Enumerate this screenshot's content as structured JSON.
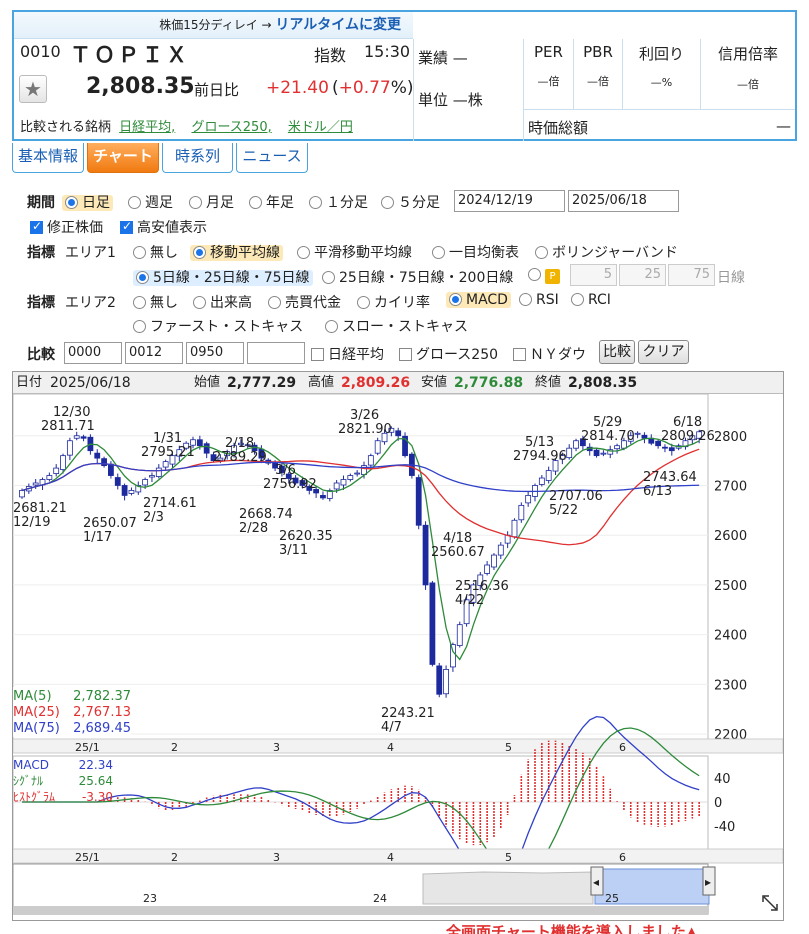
{
  "header": {
    "delay_note": "株価15分ディレイ →",
    "realtime_link": "リアルタイムに変更",
    "code": "0010",
    "name": "ＴＯＰＩＸ",
    "index_label": "指数",
    "time": "15:30",
    "price": "2,808.35",
    "change_label": "前日比",
    "change": "+21.40",
    "change_pct_open": "(",
    "change_pct": "+0.77",
    "change_pct_close": "%)",
    "compare_label": "比較される銘柄",
    "compare_links": [
      "日経平均,",
      "グロース250,",
      "米ドル／円"
    ],
    "gyoseki_label": "業績",
    "gyoseki_value": "—",
    "unit_label": "単位",
    "unit_value": "—株",
    "per_label": "PER",
    "per_value": "—倍",
    "pbr_label": "PBR",
    "pbr_value": "—倍",
    "yield_label": "利回り",
    "yield_value": "—%",
    "margin_label": "信用倍率",
    "margin_value": "—倍",
    "mcap_label": "時価総額",
    "mcap_value": "—"
  },
  "tabs": [
    "基本情報",
    "チャート",
    "時系列",
    "ニュース"
  ],
  "controls": {
    "period_label": "期間",
    "periods": [
      "日足",
      "週足",
      "月足",
      "年足",
      "１分足",
      "５分足"
    ],
    "date_from": "2024/12/19",
    "date_to": "2025/06/18",
    "adjusted": "修正株価",
    "hilo": "高安値表示",
    "ind_label": "指標",
    "area1": "エリア1",
    "area2": "エリア2",
    "area1_opts": [
      "無し",
      "移動平均線",
      "平滑移動平均線",
      "一目均衡表",
      "ボリンジャーバンド"
    ],
    "ma_opts": [
      "5日線・25日線・75日線",
      "25日線・75日線・200日線"
    ],
    "custom_ma": [
      "5",
      "25",
      "75"
    ],
    "days": "日線",
    "area2_opts": [
      "無し",
      "出来高",
      "売買代金",
      "カイリ率",
      "MACD",
      "RSI",
      "RCI",
      "ファースト・ストキャス",
      "スロー・ストキャス"
    ],
    "compare_label": "比較",
    "compare_codes": [
      "0000",
      "0012",
      "0950",
      ""
    ],
    "compare_checks": [
      "日経平均",
      "グロース250",
      "ＮＹダウ"
    ],
    "btn_compare": "比較",
    "btn_clear": "クリア"
  },
  "ohlc": {
    "date_label": "日付",
    "date": "2025/06/18",
    "open_label": "始値",
    "open": "2,777.29",
    "high_label": "高値",
    "high": "2,809.26",
    "low_label": "安値",
    "low": "2,776.88",
    "close_label": "終値",
    "close": "2,808.35"
  },
  "colors": {
    "up": "#ffffff",
    "down": "#1c2a9e",
    "ma5": "#2e8b3a",
    "ma25": "#e03030",
    "ma75": "#3040c8"
  },
  "chart_data": {
    "type": "candlestick",
    "y_ticks": [
      "2800",
      "2700",
      "2600",
      "2500",
      "2400",
      "2300",
      "2200"
    ],
    "ylim": [
      2190,
      2880
    ],
    "x_ticks": [
      "25/1",
      "2",
      "3",
      "4",
      "5",
      "6"
    ],
    "ma_legend": [
      {
        "name": "MA(5)",
        "value": "2,782.37"
      },
      {
        "name": "MA(25)",
        "value": "2,767.13"
      },
      {
        "name": "MA(75)",
        "value": "2,689.45"
      }
    ],
    "annotations": [
      {
        "text": "12/30",
        "sub": "2811.71"
      },
      {
        "text": "1/31",
        "sub": "2795.21"
      },
      {
        "text": "2/18",
        "sub": "2789.29"
      },
      {
        "text": "3/6",
        "sub": "2756.92"
      },
      {
        "text": "3/26",
        "sub": "2821.90"
      },
      {
        "text": "5/13",
        "sub": "2794.96"
      },
      {
        "text": "5/29",
        "sub": "2814.70"
      },
      {
        "text": "6/18",
        "sub": "2809.26"
      },
      {
        "text": "2681.21",
        "sub": "12/19"
      },
      {
        "text": "2650.07",
        "sub": "1/17"
      },
      {
        "text": "2714.61",
        "sub": "2/3"
      },
      {
        "text": "2668.74",
        "sub": "2/28"
      },
      {
        "text": "2620.35",
        "sub": "3/11"
      },
      {
        "text": "2243.21",
        "sub": "4/7"
      },
      {
        "text": "4/18",
        "sub": "2560.67"
      },
      {
        "text": "2516.36",
        "sub": "4/22"
      },
      {
        "text": "2707.06",
        "sub": "5/22"
      },
      {
        "text": "2743.64",
        "sub": "6/13"
      }
    ],
    "closes": [
      2690,
      2698,
      2705,
      2712,
      2720,
      2735,
      2760,
      2790,
      2800,
      2795,
      2770,
      2755,
      2740,
      2720,
      2700,
      2680,
      2690,
      2700,
      2712,
      2720,
      2735,
      2748,
      2760,
      2772,
      2785,
      2792,
      2780,
      2765,
      2750,
      2755,
      2768,
      2780,
      2785,
      2782,
      2770,
      2755,
      2745,
      2735,
      2726,
      2714,
      2705,
      2700,
      2690,
      2685,
      2675,
      2690,
      2705,
      2712,
      2720,
      2725,
      2740,
      2760,
      2790,
      2805,
      2815,
      2800,
      2760,
      2720,
      2620,
      2500,
      2340,
      2280,
      2330,
      2380,
      2420,
      2470,
      2500,
      2520,
      2540,
      2560,
      2580,
      2600,
      2630,
      2660,
      2680,
      2700,
      2715,
      2730,
      2750,
      2760,
      2775,
      2790,
      2780,
      2770,
      2760,
      2765,
      2772,
      2780,
      2790,
      2800,
      2805,
      2795,
      2785,
      2780,
      2775,
      2770,
      2780,
      2790,
      2800,
      2808
    ],
    "macd": {
      "legend": [
        {
          "name": "MACD",
          "value": "22.34"
        },
        {
          "name": "ｼｸﾞﾅﾙ",
          "value": "25.64"
        },
        {
          "name": "ﾋｽﾄｸﾞﾗﾑ",
          "value": "-3.30"
        }
      ],
      "y_ticks": [
        "40",
        "0",
        "-40"
      ]
    },
    "nav_ticks": [
      "23",
      "24",
      "25"
    ]
  },
  "footer_note": "全画面チャート機能を導入しました▲"
}
